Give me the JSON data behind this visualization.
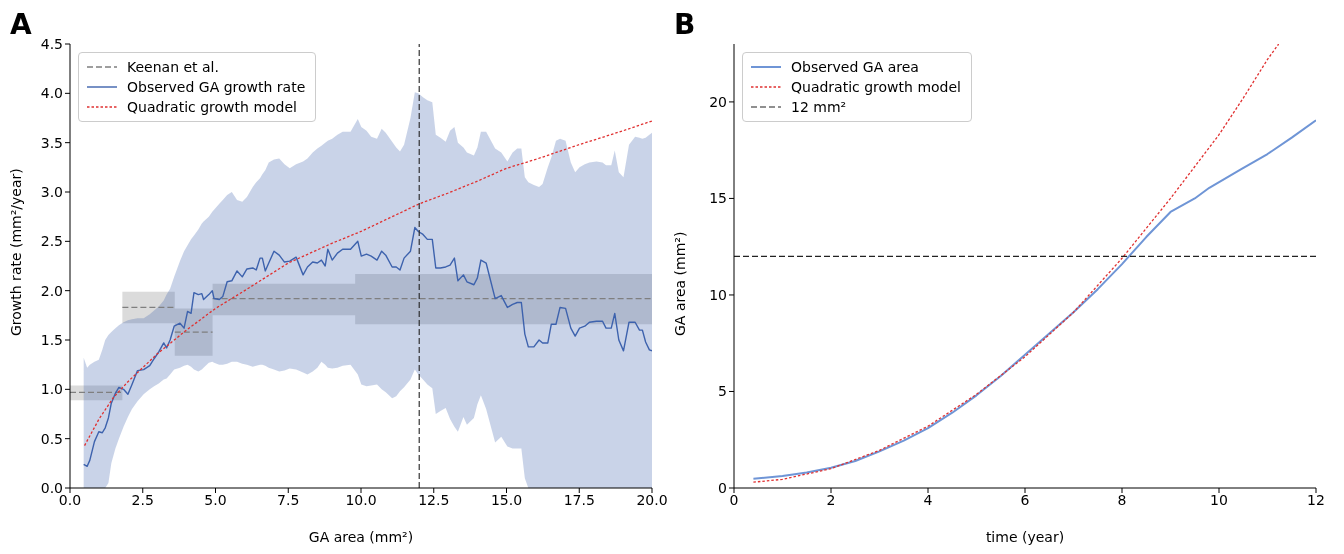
{
  "chart_data": [
    {
      "type": "line",
      "title": "A",
      "xlabel": "GA area (mm²)",
      "ylabel": "Growth rate (mm²/year)",
      "xlim": [
        0,
        20
      ],
      "ylim": [
        0,
        4.5
      ],
      "xticks": [
        {
          "value": 0,
          "label": "0.0"
        },
        {
          "value": 2.5,
          "label": "2.5"
        },
        {
          "value": 5,
          "label": "5.0"
        },
        {
          "value": 7.5,
          "label": "7.5"
        },
        {
          "value": 10,
          "label": "10.0"
        },
        {
          "value": 12.5,
          "label": "12.5"
        },
        {
          "value": 15,
          "label": "15.0"
        },
        {
          "value": 17.5,
          "label": "17.5"
        },
        {
          "value": 20,
          "label": "20.0"
        }
      ],
      "yticks": [
        {
          "value": 0,
          "label": "0.0"
        },
        {
          "value": 0.5,
          "label": "0.5"
        },
        {
          "value": 1,
          "label": "1.0"
        },
        {
          "value": 1.5,
          "label": "1.5"
        },
        {
          "value": 2,
          "label": "2.0"
        },
        {
          "value": 2.5,
          "label": "2.5"
        },
        {
          "value": 3,
          "label": "3.0"
        },
        {
          "value": 3.5,
          "label": "3.5"
        },
        {
          "value": 4,
          "label": "4.0"
        },
        {
          "value": 4.5,
          "label": "4.5"
        }
      ],
      "legend": "top left",
      "marker": "none",
      "ref_lines": [
        {
          "axis": "x",
          "value": 12,
          "color": "#222222",
          "line_style": "dashed"
        }
      ],
      "series": [
        {
          "name": "Keenan et al.",
          "type": "step",
          "color": "#7f7f7f",
          "line_style": "dashed",
          "x": [
            0,
            1.8
          ],
          "values": [
            0.97,
            0.97
          ],
          "lower": [
            0.89,
            0.89
          ],
          "upper": [
            1.04,
            1.04
          ]
        },
        {
          "type": "step",
          "color": "#7f7f7f",
          "line_style": "dashed",
          "x": [
            1.8,
            3.6
          ],
          "values": [
            1.83,
            1.83
          ],
          "lower": [
            1.67,
            1.67
          ],
          "upper": [
            1.99,
            1.99
          ]
        },
        {
          "type": "step",
          "color": "#7f7f7f",
          "line_style": "dashed",
          "x": [
            3.6,
            4.9
          ],
          "values": [
            1.58,
            1.58
          ],
          "lower": [
            1.34,
            1.34
          ],
          "upper": [
            1.82,
            1.82
          ]
        },
        {
          "type": "step",
          "color": "#7f7f7f",
          "line_style": "dashed",
          "x": [
            4.9,
            9.8,
            20
          ],
          "values": [
            1.92,
            1.92,
            1.92
          ],
          "lower": [
            1.75,
            1.66,
            1.66
          ],
          "upper": [
            2.07,
            2.17,
            2.17
          ]
        },
        {
          "name": "Observed GA growth rate",
          "color": "#3d62ad",
          "line_style": "solid",
          "x": [
            0.47,
            0.59,
            0.68,
            0.84,
            0.99,
            1.11,
            1.21,
            1.32,
            1.42,
            1.56,
            1.68,
            1.84,
            1.99,
            2.13,
            2.32,
            2.53,
            2.74,
            2.89,
            3.05,
            3.22,
            3.32,
            3.44,
            3.58,
            3.78,
            3.92,
            4.04,
            4.16,
            4.26,
            4.41,
            4.53,
            4.59,
            4.77,
            4.89,
            4.95,
            5.13,
            5.25,
            5.4,
            5.56,
            5.74,
            5.92,
            6.08,
            6.28,
            6.4,
            6.53,
            6.61,
            6.71,
            6.83,
            7.01,
            7.19,
            7.37,
            7.55,
            7.77,
            8.01,
            8.16,
            8.34,
            8.5,
            8.64,
            8.77,
            8.86,
            9.01,
            9.19,
            9.37,
            9.64,
            9.89,
            10.01,
            10.19,
            10.35,
            10.55,
            10.71,
            10.85,
            11.07,
            11.21,
            11.34,
            11.48,
            11.7,
            11.85,
            11.97,
            12.13,
            12.28,
            12.45,
            12.57,
            12.73,
            12.91,
            13.06,
            13.21,
            13.33,
            13.52,
            13.64,
            13.88,
            14.0,
            14.12,
            14.3,
            14.61,
            14.82,
            15.03,
            15.21,
            15.37,
            15.51,
            15.63,
            15.75,
            15.94,
            16.12,
            16.24,
            16.42,
            16.54,
            16.7,
            16.84,
            17.03,
            17.21,
            17.36,
            17.51,
            17.69,
            17.85,
            18.09,
            18.3,
            18.42,
            18.6,
            18.72,
            18.86,
            19.02,
            19.21,
            19.42,
            19.57,
            19.67,
            19.78,
            19.91,
            20.0
          ],
          "values": [
            0.24,
            0.22,
            0.28,
            0.47,
            0.57,
            0.56,
            0.61,
            0.71,
            0.86,
            0.96,
            1.02,
            1.0,
            0.95,
            1.05,
            1.19,
            1.2,
            1.24,
            1.31,
            1.38,
            1.47,
            1.42,
            1.5,
            1.64,
            1.67,
            1.62,
            1.79,
            1.77,
            1.98,
            1.96,
            1.97,
            1.91,
            1.96,
            2.0,
            1.92,
            1.91,
            1.94,
            2.09,
            2.1,
            2.2,
            2.14,
            2.22,
            2.23,
            2.21,
            2.33,
            2.33,
            2.2,
            2.28,
            2.4,
            2.36,
            2.29,
            2.3,
            2.34,
            2.16,
            2.24,
            2.29,
            2.28,
            2.31,
            2.25,
            2.42,
            2.31,
            2.38,
            2.42,
            2.42,
            2.5,
            2.35,
            2.37,
            2.35,
            2.31,
            2.4,
            2.36,
            2.24,
            2.24,
            2.21,
            2.33,
            2.4,
            2.64,
            2.6,
            2.57,
            2.52,
            2.52,
            2.23,
            2.23,
            2.24,
            2.26,
            2.33,
            2.1,
            2.16,
            2.09,
            2.06,
            2.13,
            2.31,
            2.28,
            1.92,
            1.95,
            1.83,
            1.86,
            1.88,
            1.88,
            1.56,
            1.43,
            1.43,
            1.5,
            1.47,
            1.47,
            1.66,
            1.66,
            1.83,
            1.82,
            1.62,
            1.54,
            1.62,
            1.64,
            1.68,
            1.69,
            1.69,
            1.62,
            1.62,
            1.77,
            1.5,
            1.39,
            1.68,
            1.68,
            1.6,
            1.6,
            1.48,
            1.4,
            1.39
          ],
          "lower": [
            0,
            0,
            0,
            0,
            0,
            0,
            0,
            0.05,
            0.25,
            0.4,
            0.5,
            0.62,
            0.72,
            0.8,
            0.88,
            0.95,
            1.0,
            1.03,
            1.06,
            1.1,
            1.11,
            1.15,
            1.2,
            1.22,
            1.24,
            1.25,
            1.23,
            1.2,
            1.18,
            1.2,
            1.22,
            1.27,
            1.28,
            1.27,
            1.25,
            1.25,
            1.26,
            1.28,
            1.28,
            1.26,
            1.25,
            1.23,
            1.24,
            1.25,
            1.25,
            1.24,
            1.22,
            1.2,
            1.18,
            1.19,
            1.21,
            1.2,
            1.17,
            1.15,
            1.18,
            1.22,
            1.28,
            1.25,
            1.22,
            1.21,
            1.22,
            1.24,
            1.25,
            1.15,
            1.05,
            1.03,
            1.04,
            1.05,
            1.0,
            0.97,
            0.91,
            0.93,
            0.98,
            1.02,
            1.1,
            1.2,
            1.15,
            1.1,
            1.05,
            1.01,
            0.75,
            0.78,
            0.81,
            0.7,
            0.62,
            0.57,
            0.72,
            0.64,
            0.71,
            0.85,
            0.94,
            0.8,
            0.46,
            0.52,
            0.42,
            0.4,
            0.4,
            0.4,
            0.1,
            0,
            0,
            0,
            0,
            0,
            0,
            0,
            0,
            0,
            0,
            0,
            0,
            0,
            0,
            0,
            0,
            0,
            0,
            0,
            0,
            0,
            0,
            0,
            0,
            0,
            0,
            0,
            0
          ],
          "upper": [
            1.32,
            1.22,
            1.25,
            1.28,
            1.3,
            1.4,
            1.5,
            1.55,
            1.58,
            1.62,
            1.65,
            1.68,
            1.7,
            1.71,
            1.72,
            1.72,
            1.76,
            1.8,
            1.84,
            1.9,
            1.96,
            2.02,
            2.14,
            2.3,
            2.4,
            2.46,
            2.52,
            2.56,
            2.62,
            2.68,
            2.7,
            2.75,
            2.8,
            2.82,
            2.88,
            2.92,
            2.97,
            3.0,
            2.92,
            2.9,
            2.95,
            3.05,
            3.1,
            3.14,
            3.18,
            3.22,
            3.3,
            3.33,
            3.34,
            3.28,
            3.24,
            3.28,
            3.31,
            3.34,
            3.4,
            3.44,
            3.47,
            3.5,
            3.52,
            3.54,
            3.58,
            3.61,
            3.61,
            3.74,
            3.66,
            3.62,
            3.56,
            3.54,
            3.64,
            3.6,
            3.51,
            3.45,
            3.41,
            3.48,
            3.75,
            4.01,
            4.0,
            3.96,
            3.93,
            3.91,
            3.58,
            3.55,
            3.51,
            3.62,
            3.66,
            3.5,
            3.45,
            3.4,
            3.37,
            3.45,
            3.61,
            3.61,
            3.44,
            3.4,
            3.31,
            3.4,
            3.44,
            3.44,
            3.15,
            3.1,
            3.07,
            3.05,
            3.08,
            3.25,
            3.35,
            3.52,
            3.54,
            3.52,
            3.3,
            3.2,
            3.25,
            3.28,
            3.3,
            3.31,
            3.3,
            3.27,
            3.27,
            3.42,
            3.2,
            3.15,
            3.48,
            3.56,
            3.55,
            3.54,
            3.55,
            3.58,
            3.6
          ]
        },
        {
          "name": "Quadratic growth model",
          "color": "#e03030",
          "line_style": "dotted",
          "x": [
            0.5,
            1,
            1.5,
            2,
            2.5,
            3,
            4,
            5,
            6,
            7.5,
            9,
            10,
            11,
            12,
            13,
            14,
            15,
            16,
            17.5,
            19,
            20
          ],
          "values": [
            0.43,
            0.7,
            0.92,
            1.08,
            1.22,
            1.36,
            1.6,
            1.82,
            2.0,
            2.28,
            2.48,
            2.6,
            2.74,
            2.88,
            2.99,
            3.11,
            3.24,
            3.33,
            3.48,
            3.62,
            3.72
          ]
        }
      ]
    },
    {
      "type": "line",
      "title": "B",
      "xlabel": "time (year)",
      "ylabel": "GA area (mm²)",
      "xlim": [
        0,
        12
      ],
      "ylim": [
        0,
        23
      ],
      "xticks": [
        0,
        2,
        4,
        6,
        8,
        10,
        12
      ],
      "yticks": [
        0,
        5,
        10,
        15,
        20
      ],
      "legend": "top left",
      "marker": "none",
      "ref_lines": [
        {
          "axis": "y",
          "value": 12,
          "label": "12 mm²",
          "color": "#222222",
          "line_style": "dashed"
        }
      ],
      "series": [
        {
          "name": "Observed GA area",
          "color": "#6f95d6",
          "line_style": "solid",
          "x": [
            0.4,
            1,
            1.5,
            2,
            2.5,
            3,
            3.5,
            4,
            4.5,
            5,
            5.5,
            6,
            6.5,
            7,
            7.5,
            8,
            8.5,
            9,
            9.5,
            9.8,
            10.45,
            11,
            11.5,
            12
          ],
          "values": [
            0.48,
            0.62,
            0.8,
            1.05,
            1.4,
            1.9,
            2.45,
            3.1,
            3.9,
            4.8,
            5.8,
            6.9,
            8.0,
            9.1,
            10.3,
            11.6,
            13.0,
            14.3,
            15.0,
            15.55,
            16.5,
            17.3,
            18.15,
            19.05
          ]
        },
        {
          "name": "Quadratic growth model",
          "color": "#e03030",
          "line_style": "dotted",
          "x": [
            0.4,
            1,
            2,
            3,
            4,
            5,
            6,
            7,
            8,
            9,
            10,
            10.5,
            11,
            11.23
          ],
          "values": [
            0.3,
            0.45,
            1.0,
            1.95,
            3.2,
            4.85,
            6.8,
            9.1,
            11.9,
            15.0,
            18.3,
            20.2,
            22.2,
            23.0
          ]
        }
      ]
    }
  ]
}
